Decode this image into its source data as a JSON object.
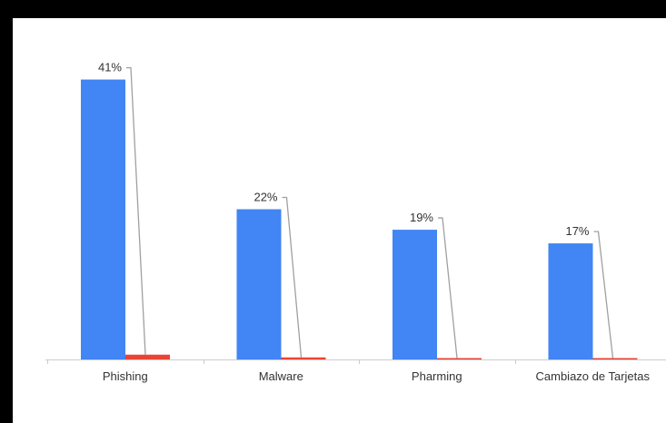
{
  "chart_data": {
    "type": "bar",
    "title": "",
    "xlabel": "",
    "ylabel": "",
    "categories": [
      "Phishing",
      "Malware",
      "Pharming",
      "Cambiazo de Tarjetas"
    ],
    "series": [
      {
        "values": [
          41,
          22,
          19,
          17
        ],
        "color": "#4285f4"
      },
      {
        "values": [
          0.7,
          0.3,
          0.2,
          0.2
        ],
        "color": "#ea4335"
      }
    ],
    "data_labels": [
      "41%",
      "22%",
      "19%",
      "17%"
    ],
    "ylim": [
      0,
      46
    ],
    "grid": false,
    "legend": "none"
  }
}
